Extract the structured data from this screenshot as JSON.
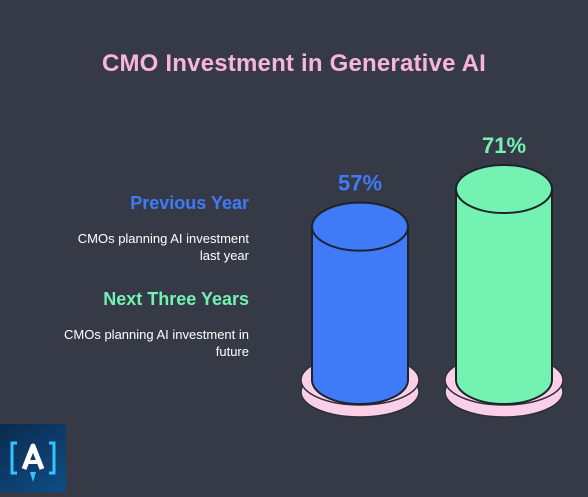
{
  "colors": {
    "background": "#363a47",
    "title": "#f7b6d9",
    "previous": "#3f7bf7",
    "next": "#74f2b2",
    "base": "#fbd0e6"
  },
  "title": "CMO Investment in Generative AI",
  "legend": {
    "previous": {
      "heading": "Previous Year",
      "line1": "CMOs planning AI investment",
      "line2": "last year"
    },
    "next": {
      "heading": "Next Three Years",
      "line1": "CMOs planning AI investment in",
      "line2": "future"
    }
  },
  "logo": {
    "icon": "rocket-a-logo-icon"
  },
  "chart_data": {
    "type": "bar",
    "categories": [
      "Previous Year",
      "Next Three Years"
    ],
    "values": [
      57,
      71
    ],
    "value_labels": [
      "57%",
      "71%"
    ],
    "title": "CMO Investment in Generative AI",
    "xlabel": "",
    "ylabel": "",
    "ylim": [
      0,
      100
    ],
    "grid": false,
    "legend_placement": "left"
  }
}
